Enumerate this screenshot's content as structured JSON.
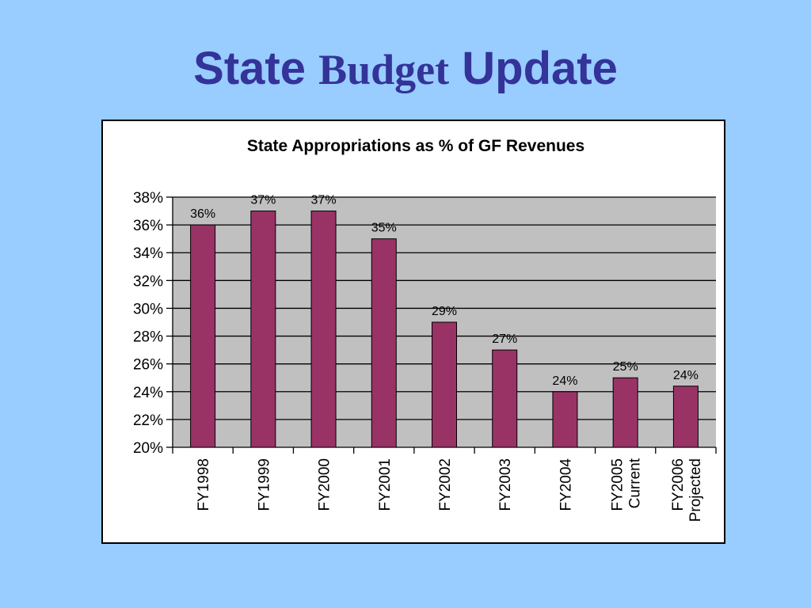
{
  "slide": {
    "title_part1": "State",
    "title_part2": "Budget",
    "title_part3": "Update"
  },
  "colors": {
    "background": "#99ccff",
    "title": "#333399",
    "plot_area": "#c0c0c0",
    "bar_fill": "#993366"
  },
  "chart_data": {
    "type": "bar",
    "title": "State Appropriations as % of GF Revenues",
    "xlabel": "",
    "ylabel": "",
    "categories": [
      [
        "FY1998"
      ],
      [
        "FY1999"
      ],
      [
        "FY2000"
      ],
      [
        "FY2001"
      ],
      [
        "FY2002"
      ],
      [
        "FY2003"
      ],
      [
        "FY2004"
      ],
      [
        "FY2005",
        "Current"
      ],
      [
        "FY2006",
        "Projected"
      ]
    ],
    "values": [
      36,
      37,
      37,
      35,
      29,
      27,
      24,
      25,
      24.4
    ],
    "data_labels": [
      "36%",
      "37%",
      "37%",
      "35%",
      "29%",
      "27%",
      "24%",
      "25%",
      "24%"
    ],
    "ylim": [
      20,
      38
    ],
    "yticks": [
      20,
      22,
      24,
      26,
      28,
      30,
      32,
      34,
      36,
      38
    ],
    "ytick_labels": [
      "20%",
      "22%",
      "24%",
      "26%",
      "28%",
      "30%",
      "32%",
      "34%",
      "36%",
      "38%"
    ],
    "grid": true,
    "legend": "none"
  }
}
